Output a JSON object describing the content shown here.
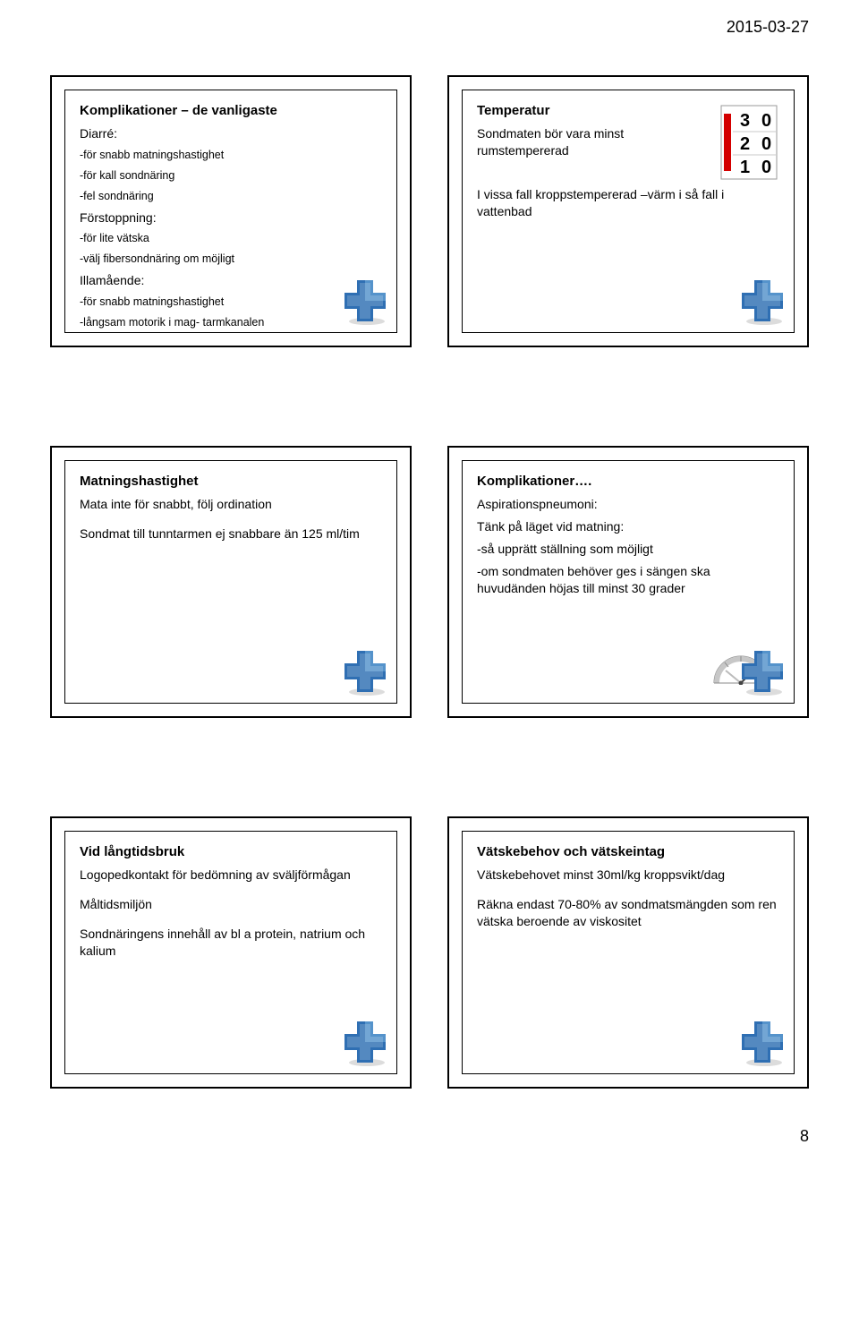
{
  "header": {
    "date": "2015-03-27"
  },
  "footer": {
    "page": "8"
  },
  "slides": {
    "s1": {
      "title": "Komplikationer – de vanligaste",
      "g1_label": "Diarré:",
      "g1_i1": "-för snabb matningshastighet",
      "g1_i2": "-för kall sondnäring",
      "g1_i3": "-fel sondnäring",
      "g2_label": "Förstoppning:",
      "g2_i1": "-för lite vätska",
      "g2_i2": "-välj fibersondnäring om möjligt",
      "g3_label": "Illamående:",
      "g3_i1": "-för snabb matningshastighet",
      "g3_i2": "-långsam motorik i mag- tarmkanalen"
    },
    "s2": {
      "title": "Temperatur",
      "l1": "Sondmaten bör vara minst rumstempererad",
      "l2": "I vissa fall kroppstempererad –värm i så fall i vattenbad",
      "thermo": {
        "rows": [
          "3 0",
          "2 0",
          "1 0"
        ],
        "digit_color": "#000000",
        "bg": "#ffffff",
        "border": "#9a9a9a",
        "red": "#d40000"
      }
    },
    "s3": {
      "title": "Matningshastighet",
      "l1": "Mata inte för snabbt, följ ordination",
      "l2": "Sondmat till tunntarmen ej snabbare än 125 ml/tim"
    },
    "s4": {
      "title": "Komplikationer….",
      "l1": "Aspirationspneumoni:",
      "l2": "Tänk på läget vid matning:",
      "l3": "-så upprätt ställning som möjligt",
      "l4": "-om sondmaten behöver ges i sängen ska huvudänden höjas till minst 30 grader",
      "protractor": {
        "arc": "#8a8a8a",
        "needle_dark": "#444",
        "needle_light": "#bbb"
      }
    },
    "s5": {
      "title": "Vid långtidsbruk",
      "l1": "Logopedkontakt för bedömning av sväljförmågan",
      "l2": "Måltidsmiljön",
      "l3": "Sondnäringens innehåll av bl a protein, natrium och kalium"
    },
    "s6": {
      "title": "Vätskebehov och vätskeintag",
      "l1": "Vätskebehovet minst 30ml/kg kroppsvikt/dag",
      "l2": "Räkna endast 70-80% av sondmatsmängden som ren vätska beroende av viskositet"
    }
  },
  "icons": {
    "cross": {
      "blue": "#2f6fb3",
      "blue_light": "#6aa6d9",
      "white": "#ffffff",
      "shadow": "#b9b9b9"
    }
  }
}
